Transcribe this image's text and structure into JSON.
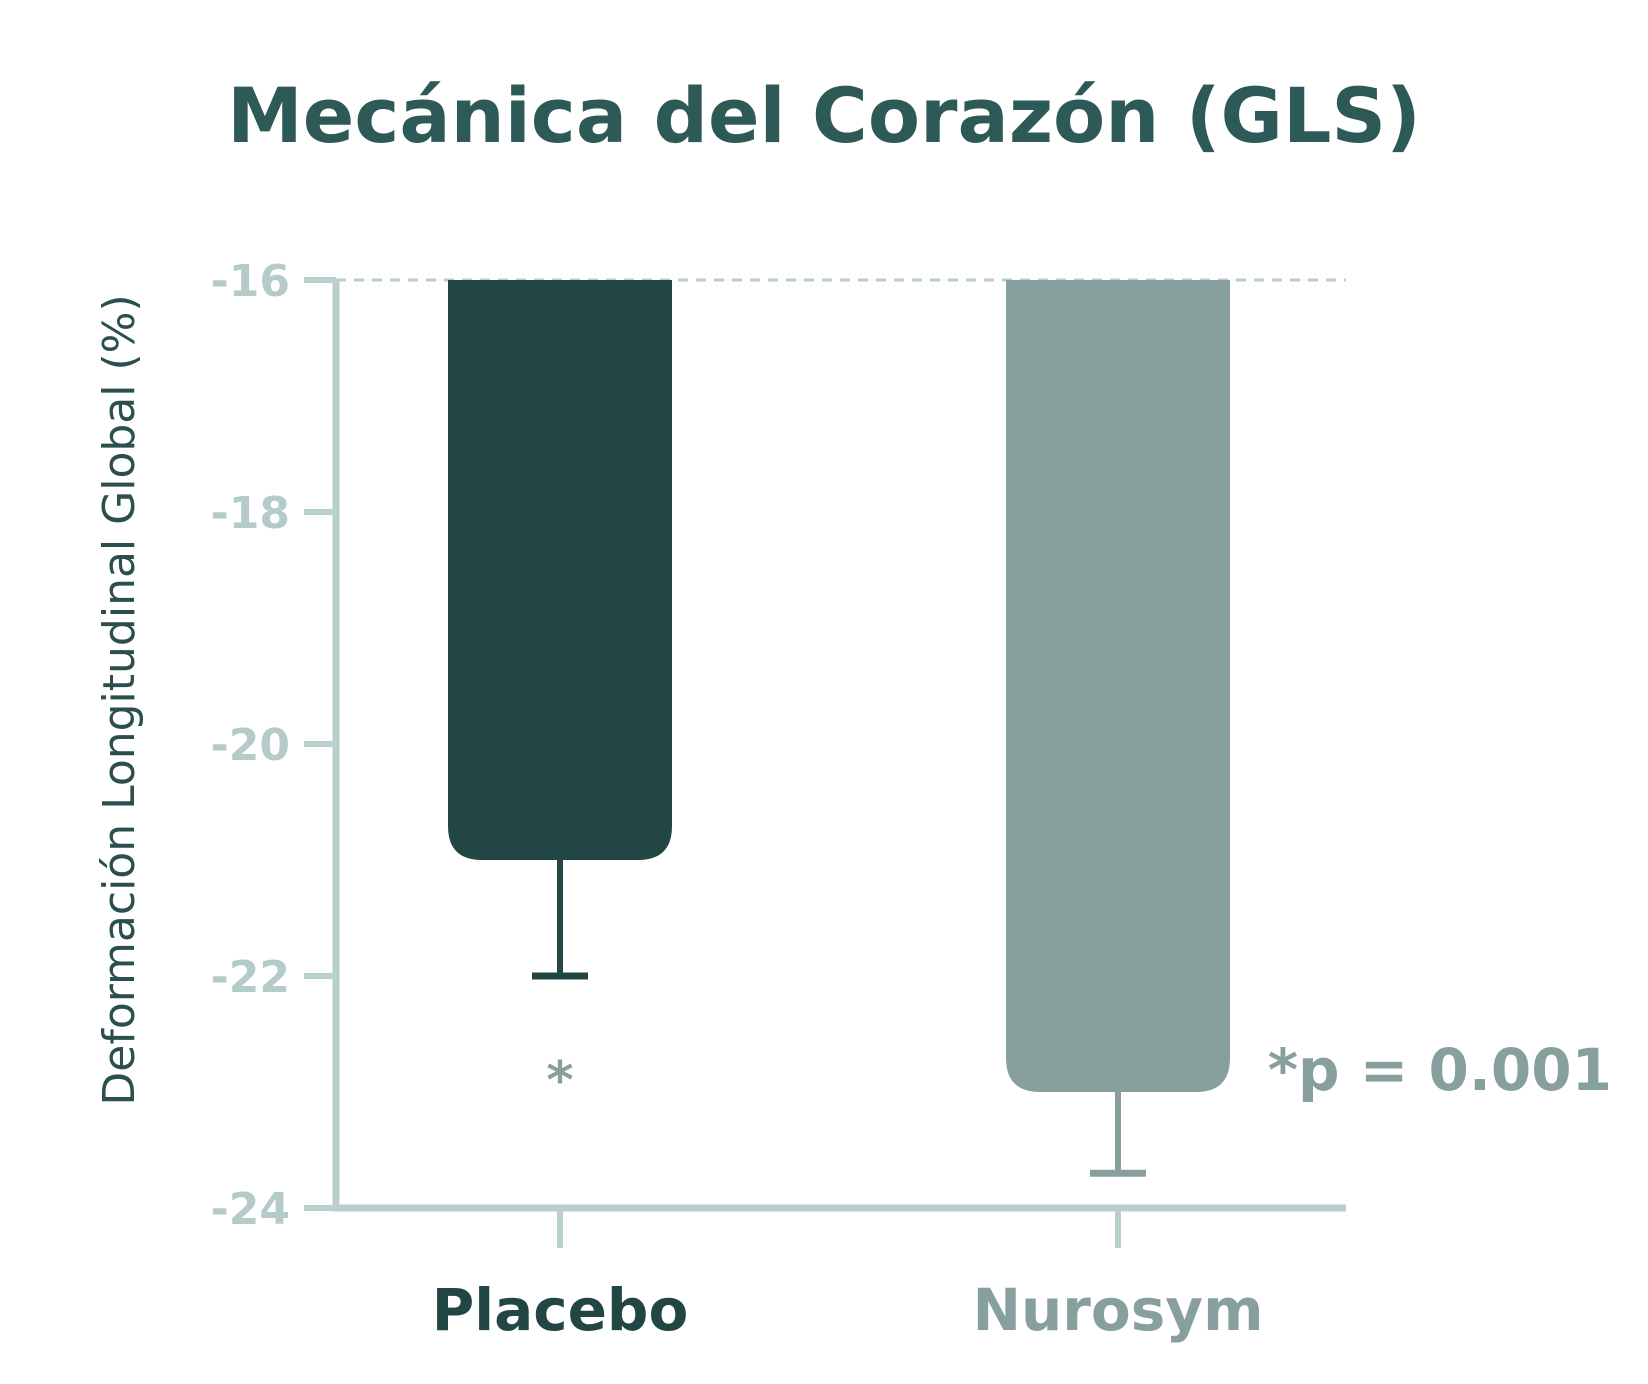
{
  "chart_data": {
    "type": "bar",
    "title": "Mecánica del Corazón (GLS)",
    "ylabel": "Deformación Longitudinal Global (%)",
    "xlabel": "",
    "categories": [
      "Placebo",
      "Nurosym"
    ],
    "values": [
      -21,
      -23
    ],
    "error_bars": [
      1,
      0.7
    ],
    "ylim": [
      -24,
      -16
    ],
    "yticks": [
      -16,
      -18,
      -20,
      -22,
      -24
    ],
    "ytick_labels": [
      "-16",
      "-18",
      "-20",
      "-22",
      "-24"
    ],
    "colors": [
      "#214644",
      "#87a09e"
    ],
    "axis_color": "#b8cfcd",
    "reference_line": -16,
    "annotations": {
      "placebo_marker": "*",
      "pvalue": "*p = 0.001"
    }
  }
}
